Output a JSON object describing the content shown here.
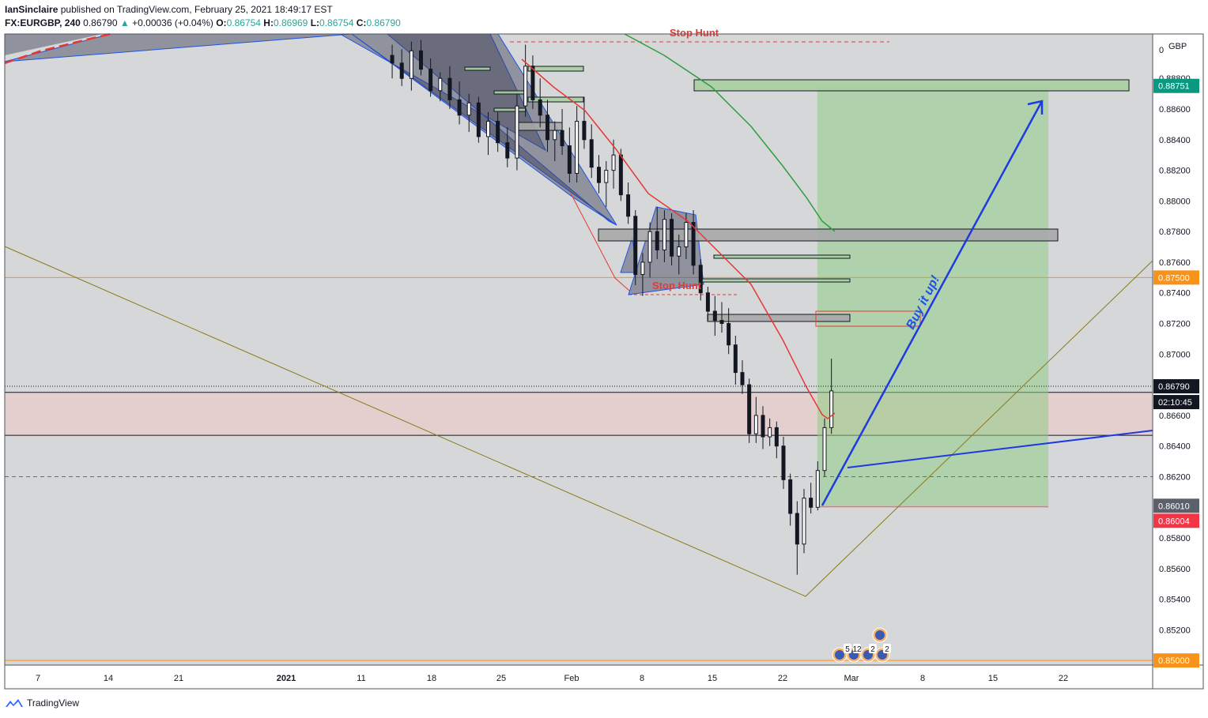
{
  "header": {
    "author": "IanSinclaire",
    "published_text": "published on TradingView.com, February 25, 2021 18:49:17 EST",
    "symbol": "FX:EURGBP, 240",
    "last_price": "0.86790",
    "change": "+0.00036 (+0.04%)",
    "o_label": "O:",
    "o_value": "0.86754",
    "h_label": "H:",
    "h_value": "0.86969",
    "l_label": "L:",
    "l_value": "0.86754",
    "c_label": "C:",
    "c_value": "0.86790"
  },
  "footer": {
    "brand": "TradingView"
  },
  "chart_data": {
    "type": "candlestick",
    "currency_label": "GBP",
    "y_range": [
      0.8497,
      0.8909
    ],
    "y_ticks": [
      "0.88800",
      "0.88600",
      "0.88400",
      "0.88200",
      "0.88000",
      "0.87800",
      "0.87600",
      "0.87400",
      "0.87200",
      "0.87000",
      "0.86600",
      "0.86400",
      "0.86200",
      "0.85800",
      "0.85600",
      "0.85400",
      "0.85200"
    ],
    "y_top_tick": "0",
    "x_ticks": [
      "7",
      "14",
      "21",
      "2021",
      "11",
      "18",
      "25",
      "Feb",
      "8",
      "15",
      "22",
      "Mar",
      "8",
      "15",
      "22"
    ],
    "price_badges": [
      {
        "label": "0.88751",
        "value": 0.88751,
        "color": "#089981"
      },
      {
        "label": "0.87500",
        "value": 0.875,
        "color": "#f7931a"
      },
      {
        "label": "0.86790",
        "value": 0.8679,
        "color": "#131722"
      },
      {
        "label": "02:10:45",
        "value": 0.86685,
        "color": "#131722"
      },
      {
        "label": "0.86010",
        "value": 0.8601,
        "color": "#5d606b"
      },
      {
        "label": "0.86004",
        "value": 0.86004,
        "color": "#f23645"
      },
      {
        "label": "0.85000",
        "value": 0.85,
        "color": "#f7931a"
      }
    ],
    "horizontal_levels": [
      0.875,
      0.85
    ],
    "current_price": 0.8679,
    "zone": {
      "top": 0.8675,
      "bottom": 0.8647
    },
    "red_dashed_level": 0.862,
    "annotations": [
      "Stop Hunt",
      "Stop Hunt",
      "Buy it up!"
    ],
    "long_position": {
      "entry": 0.8601,
      "target": 0.88751,
      "stop": 0.86004
    },
    "event_markers": [
      "5",
      "12",
      "2",
      "2"
    ],
    "candles_ohlc": [
      [
        0.8895,
        0.8902,
        0.888,
        0.889
      ],
      [
        0.889,
        0.8899,
        0.8875,
        0.888
      ],
      [
        0.888,
        0.8904,
        0.8872,
        0.8898
      ],
      [
        0.8898,
        0.8905,
        0.8882,
        0.8886
      ],
      [
        0.8886,
        0.8893,
        0.8868,
        0.8872
      ],
      [
        0.8872,
        0.8884,
        0.8865,
        0.888
      ],
      [
        0.888,
        0.8888,
        0.886,
        0.8866
      ],
      [
        0.8866,
        0.8878,
        0.885,
        0.8856
      ],
      [
        0.8856,
        0.887,
        0.8845,
        0.8864
      ],
      [
        0.8864,
        0.8868,
        0.8838,
        0.8842
      ],
      [
        0.8842,
        0.8858,
        0.883,
        0.8852
      ],
      [
        0.8852,
        0.8858,
        0.8832,
        0.8838
      ],
      [
        0.8838,
        0.8848,
        0.8822,
        0.8828
      ],
      [
        0.8828,
        0.887,
        0.882,
        0.8862
      ],
      [
        0.8862,
        0.8902,
        0.8855,
        0.8888
      ],
      [
        0.8888,
        0.8895,
        0.886,
        0.8866
      ],
      [
        0.8866,
        0.888,
        0.8848,
        0.8856
      ],
      [
        0.8856,
        0.8866,
        0.8832,
        0.884
      ],
      [
        0.884,
        0.8852,
        0.8826,
        0.8846
      ],
      [
        0.8846,
        0.886,
        0.883,
        0.8836
      ],
      [
        0.8836,
        0.8848,
        0.8812,
        0.8818
      ],
      [
        0.8818,
        0.8862,
        0.8812,
        0.8852
      ],
      [
        0.8852,
        0.8868,
        0.8834,
        0.884
      ],
      [
        0.884,
        0.885,
        0.8815,
        0.8822
      ],
      [
        0.8822,
        0.883,
        0.8805,
        0.8812
      ],
      [
        0.8812,
        0.8826,
        0.8796,
        0.882
      ],
      [
        0.882,
        0.884,
        0.8808,
        0.883
      ],
      [
        0.883,
        0.8834,
        0.88,
        0.8804
      ],
      [
        0.8804,
        0.8812,
        0.8785,
        0.879
      ],
      [
        0.879,
        0.8794,
        0.8745,
        0.8752
      ],
      [
        0.8752,
        0.8766,
        0.8738,
        0.876
      ],
      [
        0.876,
        0.8786,
        0.875,
        0.878
      ],
      [
        0.878,
        0.8796,
        0.8762,
        0.8768
      ],
      [
        0.8768,
        0.8794,
        0.876,
        0.8788
      ],
      [
        0.8788,
        0.8792,
        0.8758,
        0.8764
      ],
      [
        0.8764,
        0.8778,
        0.8752,
        0.877
      ],
      [
        0.877,
        0.8792,
        0.8762,
        0.8786
      ],
      [
        0.8786,
        0.8794,
        0.8752,
        0.8758
      ],
      [
        0.8758,
        0.8762,
        0.8735,
        0.874
      ],
      [
        0.874,
        0.8744,
        0.8722,
        0.8728
      ],
      [
        0.8728,
        0.8738,
        0.8712,
        0.8722
      ],
      [
        0.8722,
        0.8734,
        0.8714,
        0.872
      ],
      [
        0.872,
        0.873,
        0.87,
        0.8706
      ],
      [
        0.8706,
        0.8712,
        0.868,
        0.8688
      ],
      [
        0.8688,
        0.8696,
        0.8674,
        0.868
      ],
      [
        0.868,
        0.8684,
        0.8642,
        0.8648
      ],
      [
        0.8648,
        0.8672,
        0.8642,
        0.866
      ],
      [
        0.866,
        0.8666,
        0.8638,
        0.8646
      ],
      [
        0.8646,
        0.8658,
        0.864,
        0.8652
      ],
      [
        0.8652,
        0.8656,
        0.8632,
        0.864
      ],
      [
        0.864,
        0.8646,
        0.8612,
        0.8618
      ],
      [
        0.8618,
        0.8622,
        0.8588,
        0.8596
      ],
      [
        0.8596,
        0.8604,
        0.8556,
        0.8576
      ],
      [
        0.8576,
        0.8612,
        0.857,
        0.8606
      ],
      [
        0.8606,
        0.8616,
        0.8596,
        0.86
      ],
      [
        0.86,
        0.863,
        0.8598,
        0.8624
      ],
      [
        0.8624,
        0.8658,
        0.862,
        0.8652
      ],
      [
        0.8652,
        0.8697,
        0.8648,
        0.8676
      ],
      [
        0.8676,
        0.8697,
        0.8675,
        0.8679
      ]
    ]
  }
}
